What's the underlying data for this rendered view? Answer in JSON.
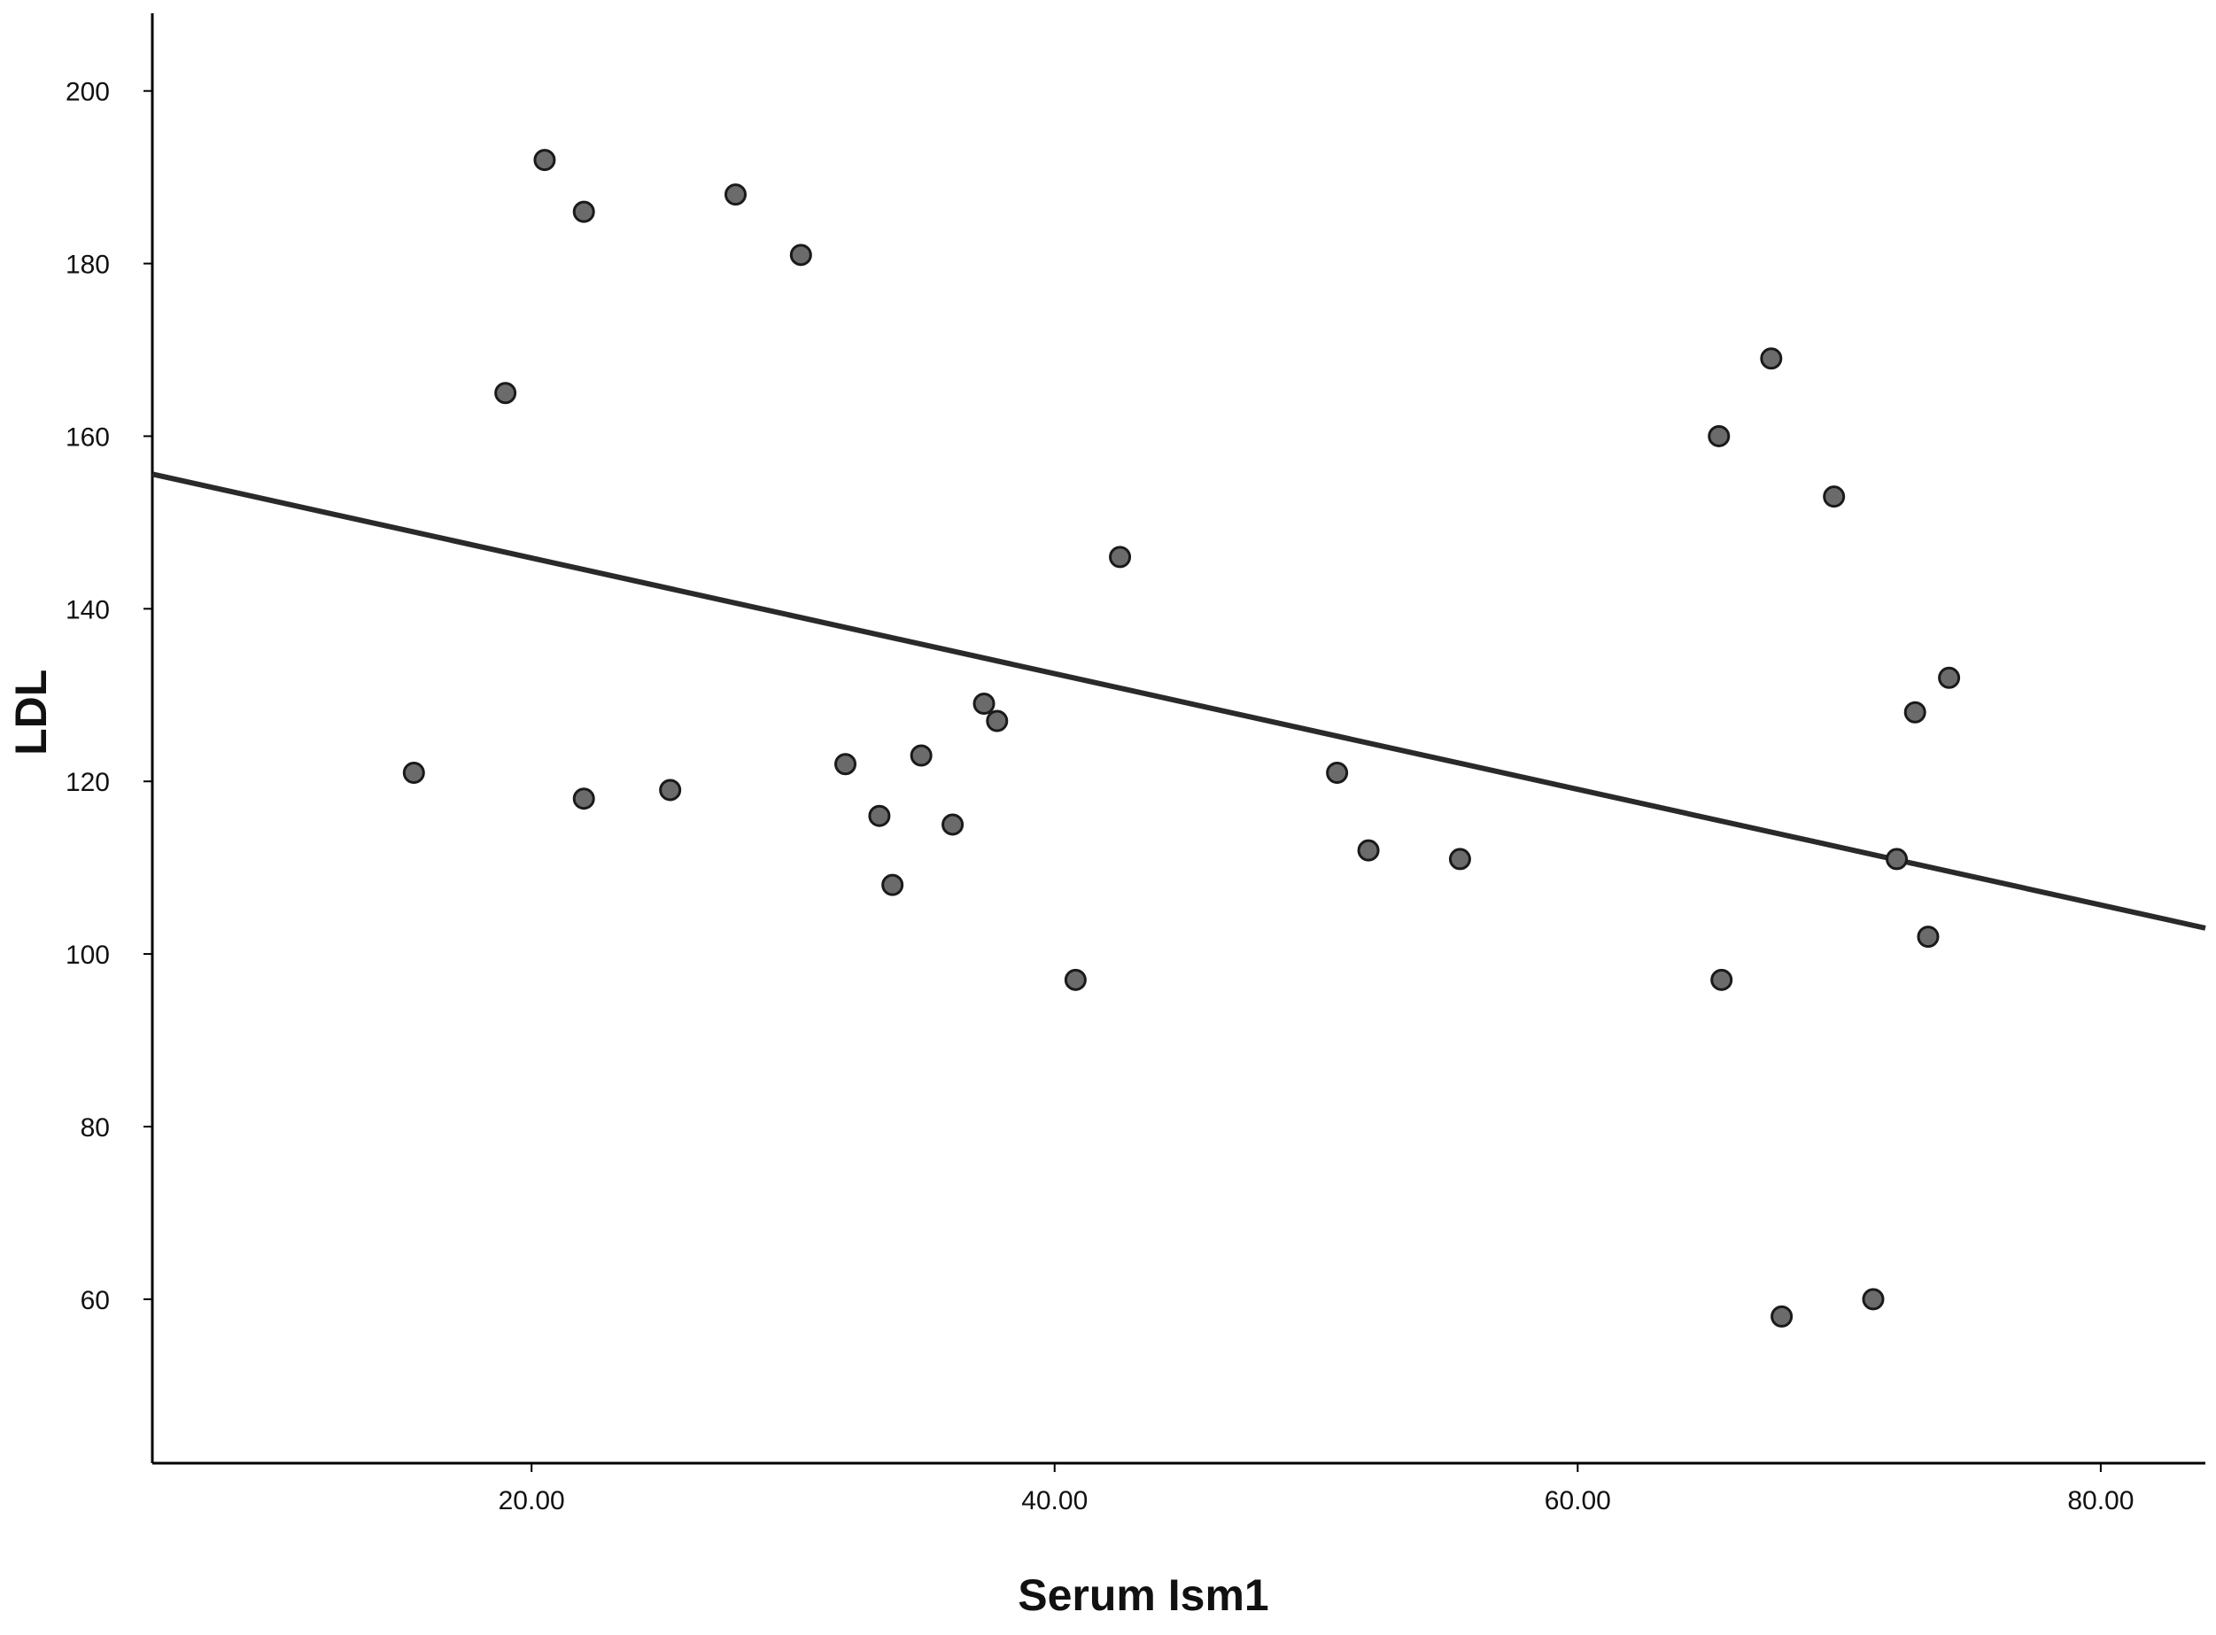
{
  "chart_data": {
    "type": "scatter",
    "title": "",
    "xlabel": "Serum Ism1",
    "ylabel": "LDL",
    "xlim": [
      5.5,
      84
    ],
    "ylim": [
      41,
      209
    ],
    "x_ticks": [
      "20.00",
      "40.00",
      "60.00",
      "80.00"
    ],
    "y_ticks": [
      "60",
      "80",
      "100",
      "120",
      "140",
      "160",
      "180",
      "200"
    ],
    "grid": false,
    "legend": "none",
    "series": [
      {
        "points": [
          {
            "x": 15.5,
            "y": 121
          },
          {
            "x": 19.0,
            "y": 165
          },
          {
            "x": 20.5,
            "y": 192
          },
          {
            "x": 22.0,
            "y": 186
          },
          {
            "x": 22.0,
            "y": 118
          },
          {
            "x": 25.3,
            "y": 119
          },
          {
            "x": 27.8,
            "y": 188
          },
          {
            "x": 30.3,
            "y": 181
          },
          {
            "x": 32.0,
            "y": 122
          },
          {
            "x": 33.3,
            "y": 116
          },
          {
            "x": 33.8,
            "y": 108
          },
          {
            "x": 34.9,
            "y": 123
          },
          {
            "x": 36.1,
            "y": 115
          },
          {
            "x": 37.3,
            "y": 129
          },
          {
            "x": 37.8,
            "y": 127
          },
          {
            "x": 40.8,
            "y": 97
          },
          {
            "x": 42.5,
            "y": 146
          },
          {
            "x": 50.8,
            "y": 121
          },
          {
            "x": 52.0,
            "y": 112
          },
          {
            "x": 55.5,
            "y": 111
          },
          {
            "x": 65.4,
            "y": 160
          },
          {
            "x": 65.5,
            "y": 97
          },
          {
            "x": 67.4,
            "y": 169
          },
          {
            "x": 67.8,
            "y": 58
          },
          {
            "x": 69.8,
            "y": 153
          },
          {
            "x": 71.3,
            "y": 60
          },
          {
            "x": 72.2,
            "y": 111
          },
          {
            "x": 72.9,
            "y": 128
          },
          {
            "x": 73.4,
            "y": 102
          },
          {
            "x": 74.2,
            "y": 132
          }
        ]
      }
    ],
    "fit_line": {
      "x": [
        5.5,
        84
      ],
      "y": [
        155.6,
        103
      ]
    },
    "colors": {
      "point_fill": "#6b6b6b",
      "point_stroke": "#1a1a1a",
      "line": "#2a2a2a"
    }
  }
}
